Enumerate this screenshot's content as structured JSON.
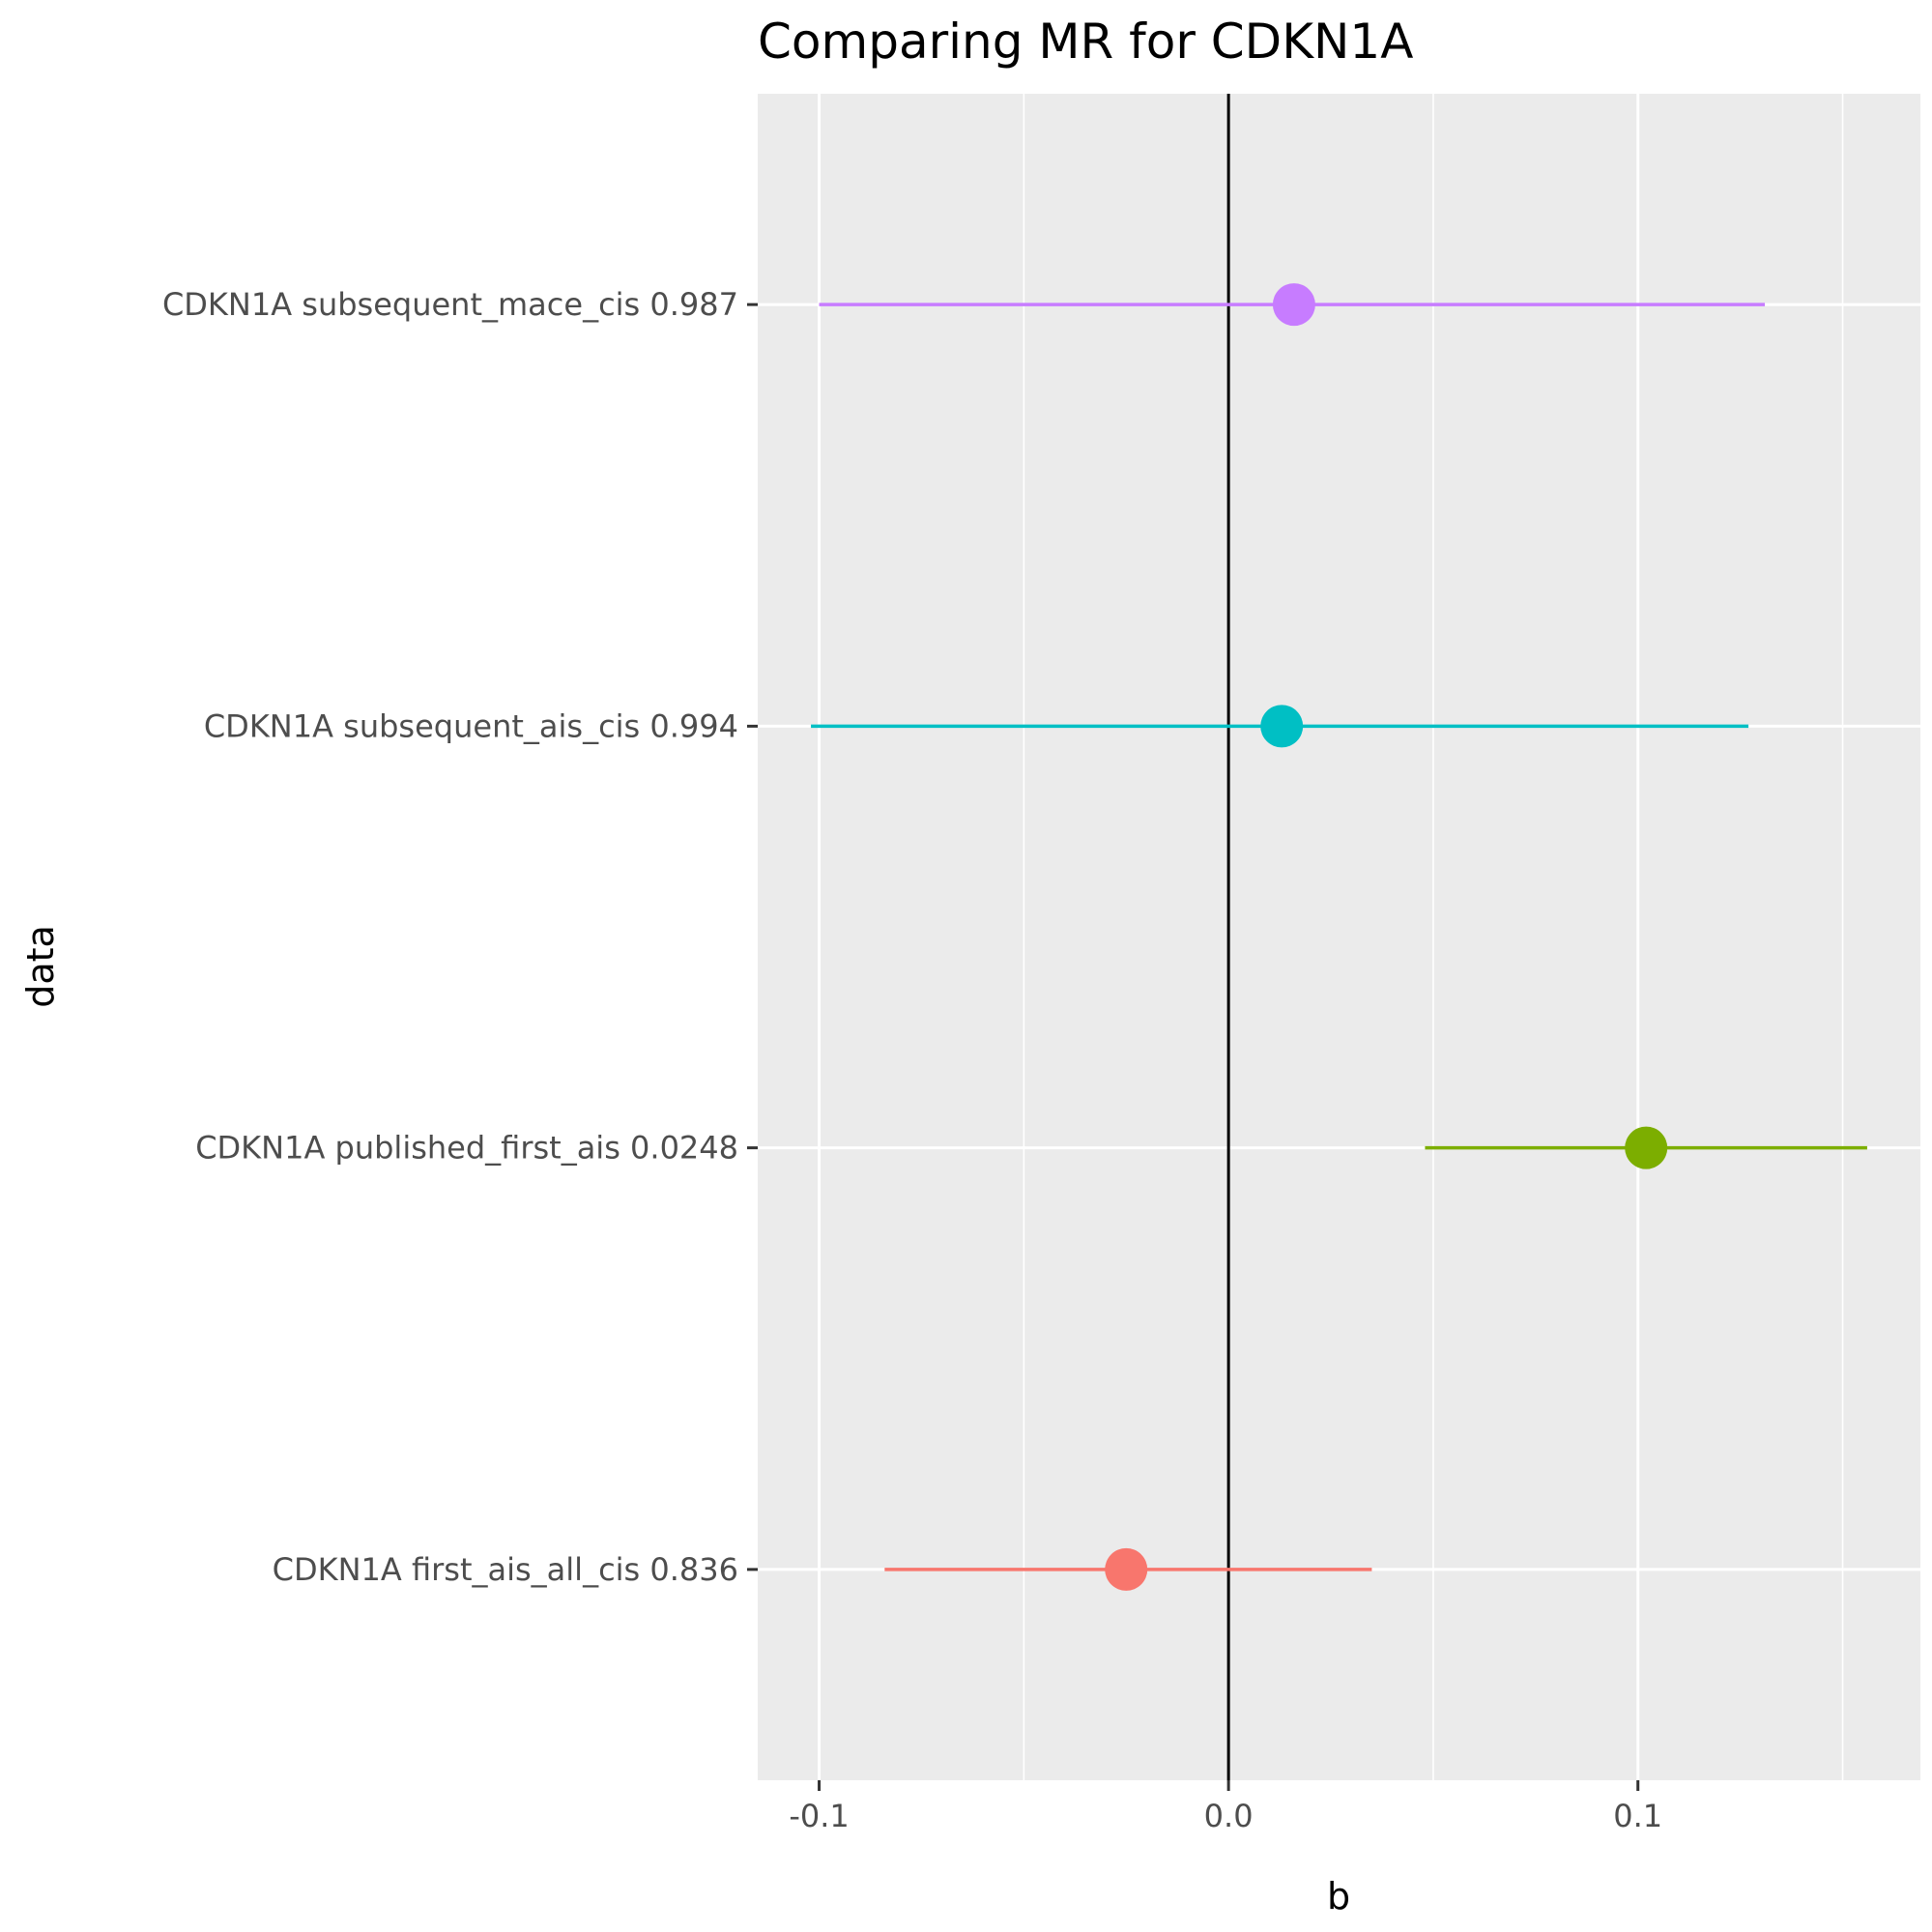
{
  "chart_data": {
    "type": "forest",
    "title": "Comparing MR for CDKN1A",
    "xlabel": "b",
    "ylabel": "data",
    "xlim": [
      -0.115,
      0.169
    ],
    "x_ticks": [
      -0.1,
      0.0,
      0.1
    ],
    "x_tick_labels": [
      "-0.1",
      "0.0",
      "0.1"
    ],
    "reference_line_x": 0,
    "grid": true,
    "legend": "none",
    "series": [
      {
        "label": "CDKN1A first_ais_all_cis 0.836",
        "b": -0.025,
        "lower": -0.084,
        "upper": 0.035,
        "color": "#F8766D"
      },
      {
        "label": "CDKN1A published_first_ais 0.0248",
        "b": 0.102,
        "lower": 0.048,
        "upper": 0.156,
        "color": "#7CAE00"
      },
      {
        "label": "CDKN1A subsequent_ais_cis 0.994",
        "b": 0.013,
        "lower": -0.102,
        "upper": 0.127,
        "color": "#00BFC4"
      },
      {
        "label": "CDKN1A subsequent_mace_cis 0.987",
        "b": 0.016,
        "lower": -0.1,
        "upper": 0.131,
        "color": "#C77CFF"
      }
    ]
  }
}
